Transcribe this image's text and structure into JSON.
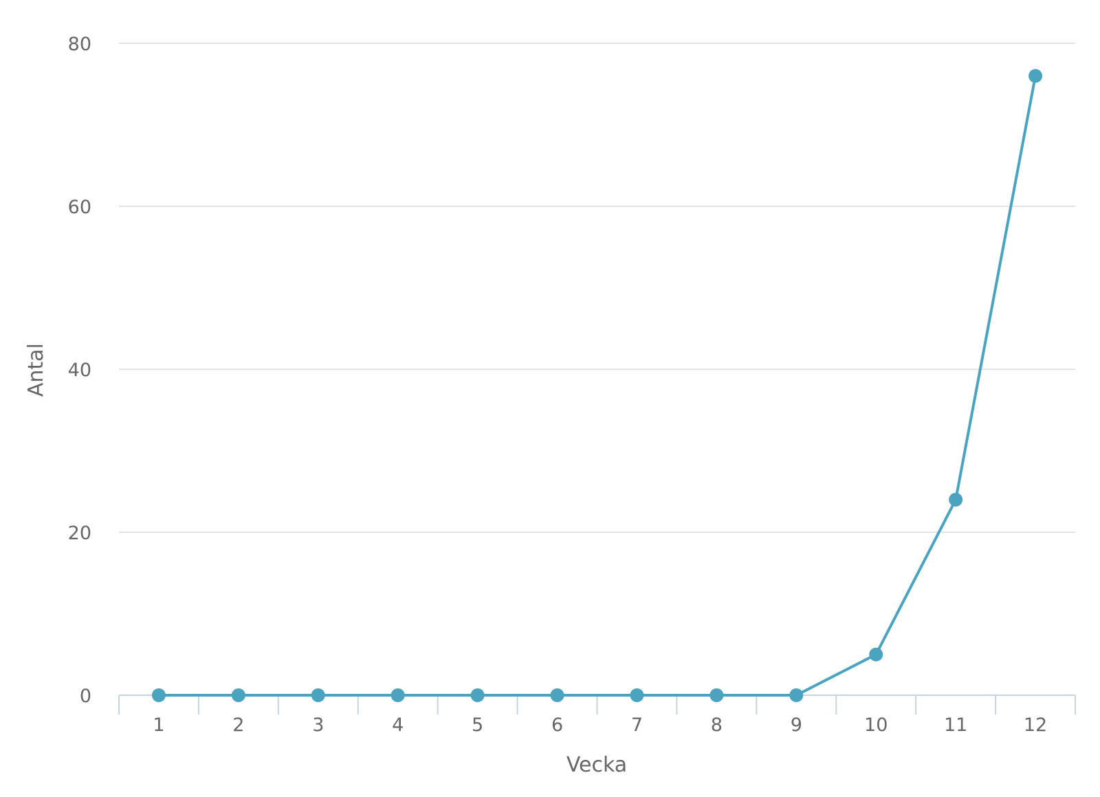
{
  "chart_data": {
    "type": "line",
    "title": "",
    "xlabel": "Vecka",
    "ylabel": "Antal",
    "categories": [
      "1",
      "2",
      "3",
      "4",
      "5",
      "6",
      "7",
      "8",
      "9",
      "10",
      "11",
      "12"
    ],
    "series": [
      {
        "values": [
          0,
          0,
          0,
          0,
          0,
          0,
          0,
          0,
          0,
          5,
          24,
          76
        ],
        "color": "#4aa3bf"
      }
    ],
    "ylim": [
      0,
      80
    ],
    "yticks": [
      "0",
      "20",
      "40",
      "60",
      "80"
    ],
    "grid": true,
    "legend": "none"
  }
}
